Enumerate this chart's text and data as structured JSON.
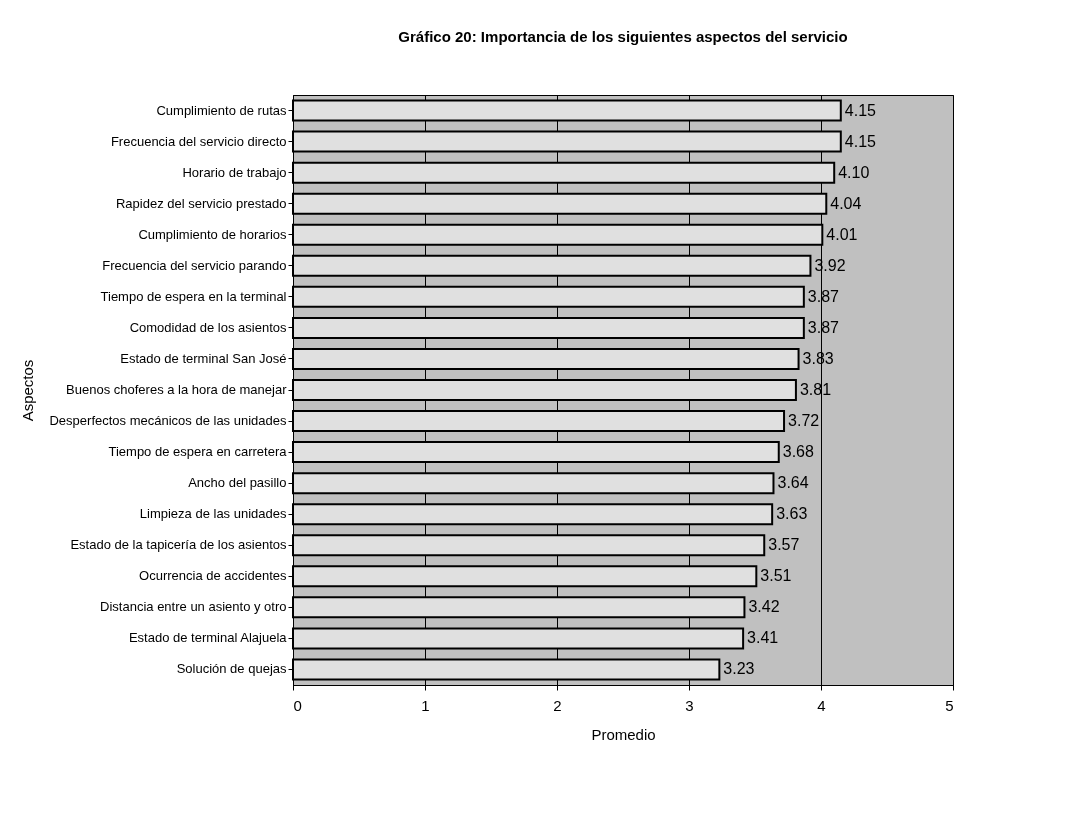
{
  "chart_data": {
    "type": "bar",
    "orientation": "horizontal",
    "title": "Gráfico 20: Importancia de los siguientes aspectos del servicio",
    "xlabel": "Promedio",
    "ylabel": "Aspectos",
    "categories": [
      "Cumplimiento de rutas",
      "Frecuencia del servicio directo",
      "Horario de trabajo",
      "Rapidez del servicio prestado",
      "Cumplimiento de horarios",
      "Frecuencia del servicio parando",
      "Tiempo de espera en la terminal",
      "Comodidad de los asientos",
      "Estado de terminal San José",
      "Buenos choferes a la hora de manejar",
      "Desperfectos mecánicos de las unidades",
      "Tiempo de espera en carretera",
      "Ancho del pasillo",
      "Limpieza de las unidades",
      "Estado de la tapicería de los asientos",
      "Ocurrencia de accidentes",
      "Distancia entre un asiento y otro",
      "Estado de terminal Alajuela",
      "Solución de quejas"
    ],
    "values": [
      4.15,
      4.15,
      4.1,
      4.04,
      4.01,
      3.92,
      3.87,
      3.87,
      3.83,
      3.81,
      3.72,
      3.68,
      3.64,
      3.63,
      3.57,
      3.51,
      3.42,
      3.41,
      3.23
    ],
    "value_labels": [
      "4.15",
      "4.15",
      "4.10",
      "4.04",
      "4.01",
      "3.92",
      "3.87",
      "3.87",
      "3.83",
      "3.81",
      "3.72",
      "3.68",
      "3.64",
      "3.63",
      "3.57",
      "3.51",
      "3.42",
      "3.41",
      "3.23"
    ],
    "color": "#e0e0e0",
    "xlim": [
      0,
      5
    ],
    "xticks": [
      0,
      1,
      2,
      3,
      4,
      5
    ],
    "grid": "x"
  }
}
